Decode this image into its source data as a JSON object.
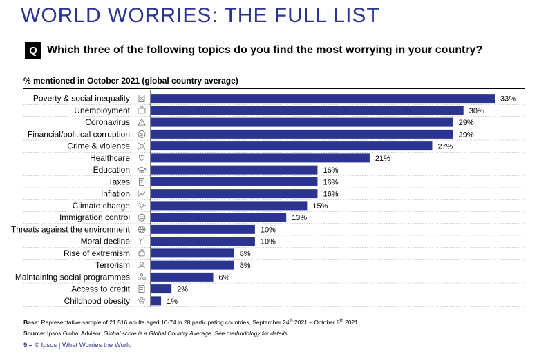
{
  "header": {
    "title": "WORLD WORRIES: THE FULL LIST",
    "q_badge": "Q",
    "question": "Which three of the following topics do you find the most worrying in your country?",
    "subtitle": "% mentioned in October 2021 (global country average)"
  },
  "colors": {
    "bar": "#2b3490",
    "title": "#2b3490"
  },
  "chart_data": {
    "type": "bar",
    "orientation": "horizontal",
    "title": "% mentioned in October 2021 (global country average)",
    "categories": [
      "Poverty & social inequality",
      "Unemployment",
      "Coronavirus",
      "Financial/political corruption",
      "Crime & violence",
      "Healthcare",
      "Education",
      "Taxes",
      "Inflation",
      "Climate change",
      "Immigration control",
      "Threats against the environment",
      "Moral decline",
      "Rise of extremism",
      "Terrorism",
      "Maintaining social programmes",
      "Access to credit",
      "Childhood obesity"
    ],
    "values": [
      33,
      30,
      29,
      29,
      27,
      21,
      16,
      16,
      16,
      15,
      13,
      10,
      10,
      8,
      8,
      6,
      2,
      1
    ],
    "value_labels": [
      "33%",
      "30%",
      "29%",
      "29%",
      "27%",
      "21%",
      "16%",
      "16%",
      "16%",
      "15%",
      "13%",
      "10%",
      "10%",
      "8%",
      "8%",
      "6%",
      "2%",
      "1%"
    ],
    "icons": [
      "poverty-icon",
      "unemployment-icon",
      "warning-icon",
      "corruption-icon",
      "crime-icon",
      "healthcare-icon",
      "education-icon",
      "taxes-icon",
      "inflation-icon",
      "climate-icon",
      "immigration-icon",
      "environment-icon",
      "moral-decline-icon",
      "extremism-icon",
      "terrorism-icon",
      "social-programmes-icon",
      "credit-icon",
      "obesity-icon"
    ],
    "xlim": [
      0,
      35
    ],
    "grid": false,
    "legend": "none"
  },
  "footnotes": {
    "base_label": "Base:",
    "base_text": " Representative sample of 21,516 adults aged 16-74 in 28 participating countries, September 24",
    "base_sup1": "th",
    "base_mid": " 2021 – October 8",
    "base_sup2": "th",
    "base_end": " 2021.",
    "source_label": "Source:",
    "source_text": " Ipsos Global Advisor. ",
    "source_italic": "Global score is a Global Country Average. See methodology for details."
  },
  "footer": {
    "page": "9",
    "dash": " – ",
    "text": "© Ipsos | What Worries the World"
  }
}
